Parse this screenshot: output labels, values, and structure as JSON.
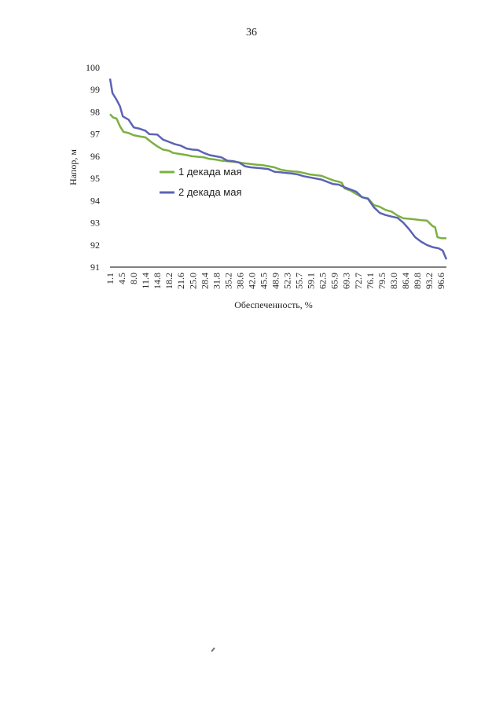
{
  "page": {
    "number": "36"
  },
  "chart_data": {
    "type": "line",
    "title": "",
    "xlabel": "Обеспеченность, %",
    "ylabel": "Напор, м",
    "ylim": [
      91,
      100
    ],
    "yticks": [
      91,
      92,
      93,
      94,
      95,
      96,
      97,
      98,
      99,
      100
    ],
    "xlim": [
      1.1,
      98.9
    ],
    "xtick_labels": [
      "1.1",
      "4.5",
      "8.0",
      "11.4",
      "14.8",
      "18.2",
      "21.6",
      "25.0",
      "28.4",
      "31.8",
      "35.2",
      "38.6",
      "42.0",
      "45.5",
      "48.9",
      "52.3",
      "55.7",
      "59.1",
      "62.5",
      "65.9",
      "69.3",
      "72.7",
      "76.1",
      "79.5",
      "83.0",
      "86.4",
      "89.8",
      "93.2",
      "96.6"
    ],
    "grid": false,
    "legend_position": "center-left",
    "series": [
      {
        "name": "1 декада мая",
        "color": "#7bb040",
        "points": [
          [
            1.1,
            97.9
          ],
          [
            2.0,
            97.75
          ],
          [
            3.0,
            97.7
          ],
          [
            4.0,
            97.35
          ],
          [
            5.0,
            97.1
          ],
          [
            6.5,
            97.05
          ],
          [
            8.0,
            96.95
          ],
          [
            9.5,
            96.9
          ],
          [
            11.4,
            96.85
          ],
          [
            13.0,
            96.65
          ],
          [
            14.8,
            96.45
          ],
          [
            16.5,
            96.3
          ],
          [
            18.2,
            96.25
          ],
          [
            19.5,
            96.15
          ],
          [
            21.6,
            96.1
          ],
          [
            23.5,
            96.05
          ],
          [
            25.0,
            96.0
          ],
          [
            28.4,
            95.95
          ],
          [
            30.0,
            95.88
          ],
          [
            31.8,
            95.85
          ],
          [
            33.5,
            95.8
          ],
          [
            35.2,
            95.78
          ],
          [
            36.9,
            95.75
          ],
          [
            38.6,
            95.72
          ],
          [
            40.3,
            95.68
          ],
          [
            42.0,
            95.65
          ],
          [
            43.7,
            95.62
          ],
          [
            45.5,
            95.6
          ],
          [
            47.2,
            95.55
          ],
          [
            48.9,
            95.5
          ],
          [
            50.6,
            95.4
          ],
          [
            52.3,
            95.35
          ],
          [
            54.0,
            95.32
          ],
          [
            55.7,
            95.3
          ],
          [
            57.4,
            95.25
          ],
          [
            59.1,
            95.18
          ],
          [
            60.8,
            95.15
          ],
          [
            62.5,
            95.12
          ],
          [
            64.2,
            95.02
          ],
          [
            65.9,
            94.92
          ],
          [
            67.6,
            94.85
          ],
          [
            68.5,
            94.8
          ],
          [
            69.3,
            94.55
          ],
          [
            71.0,
            94.45
          ],
          [
            72.7,
            94.3
          ],
          [
            74.4,
            94.15
          ],
          [
            76.1,
            94.1
          ],
          [
            77.8,
            93.8
          ],
          [
            79.5,
            93.72
          ],
          [
            81.2,
            93.58
          ],
          [
            83.0,
            93.5
          ],
          [
            84.7,
            93.32
          ],
          [
            86.4,
            93.2
          ],
          [
            88.1,
            93.18
          ],
          [
            89.8,
            93.15
          ],
          [
            91.5,
            93.12
          ],
          [
            93.2,
            93.1
          ],
          [
            94.9,
            92.85
          ],
          [
            95.6,
            92.8
          ],
          [
            96.3,
            92.35
          ],
          [
            97.5,
            92.3
          ],
          [
            98.9,
            92.3
          ]
        ]
      },
      {
        "name": "2 декада мая",
        "color": "#5b63b4",
        "points": [
          [
            1.1,
            99.5
          ],
          [
            1.8,
            98.85
          ],
          [
            3.0,
            98.55
          ],
          [
            4.0,
            98.25
          ],
          [
            4.8,
            97.8
          ],
          [
            6.5,
            97.65
          ],
          [
            8.0,
            97.3
          ],
          [
            9.5,
            97.25
          ],
          [
            11.4,
            97.15
          ],
          [
            12.5,
            97.0
          ],
          [
            14.8,
            96.98
          ],
          [
            16.5,
            96.75
          ],
          [
            18.2,
            96.65
          ],
          [
            19.9,
            96.55
          ],
          [
            21.6,
            96.48
          ],
          [
            23.3,
            96.35
          ],
          [
            25.0,
            96.3
          ],
          [
            26.7,
            96.28
          ],
          [
            28.4,
            96.15
          ],
          [
            30.1,
            96.05
          ],
          [
            31.8,
            96.0
          ],
          [
            33.5,
            95.95
          ],
          [
            35.2,
            95.8
          ],
          [
            36.9,
            95.78
          ],
          [
            38.6,
            95.72
          ],
          [
            40.3,
            95.55
          ],
          [
            42.0,
            95.5
          ],
          [
            43.7,
            95.48
          ],
          [
            45.5,
            95.45
          ],
          [
            47.2,
            95.42
          ],
          [
            48.9,
            95.3
          ],
          [
            50.6,
            95.28
          ],
          [
            52.3,
            95.25
          ],
          [
            54.0,
            95.22
          ],
          [
            55.7,
            95.18
          ],
          [
            57.4,
            95.1
          ],
          [
            59.1,
            95.05
          ],
          [
            60.8,
            95.0
          ],
          [
            62.5,
            94.95
          ],
          [
            64.2,
            94.85
          ],
          [
            65.9,
            94.75
          ],
          [
            67.6,
            94.72
          ],
          [
            69.3,
            94.6
          ],
          [
            71.0,
            94.5
          ],
          [
            72.7,
            94.4
          ],
          [
            74.4,
            94.15
          ],
          [
            76.1,
            94.08
          ],
          [
            77.8,
            93.7
          ],
          [
            79.5,
            93.45
          ],
          [
            81.2,
            93.35
          ],
          [
            83.0,
            93.28
          ],
          [
            84.7,
            93.22
          ],
          [
            86.4,
            93.0
          ],
          [
            88.1,
            92.7
          ],
          [
            89.8,
            92.35
          ],
          [
            91.5,
            92.15
          ],
          [
            93.2,
            92.0
          ],
          [
            94.9,
            91.9
          ],
          [
            96.6,
            91.85
          ],
          [
            97.8,
            91.75
          ],
          [
            98.9,
            91.35
          ]
        ]
      }
    ]
  }
}
